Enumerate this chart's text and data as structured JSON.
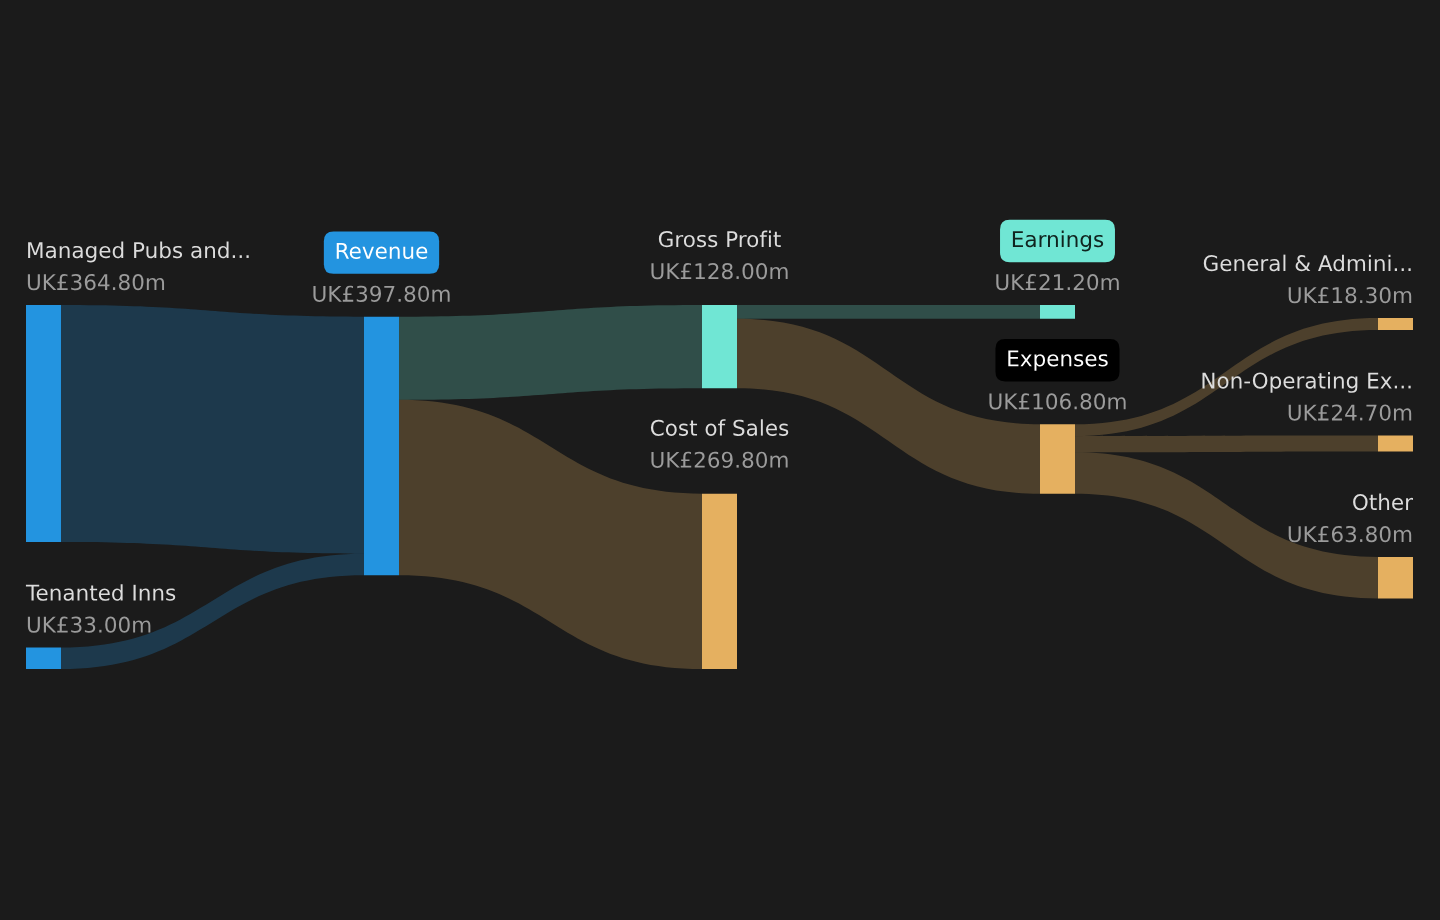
{
  "chart_data": {
    "type": "other",
    "categories": [
      "Managed Pubs and...",
      "Tenanted Inns",
      "Revenue",
      "Gross Profit",
      "Cost of Sales",
      "Earnings",
      "Expenses",
      "General & Admini...",
      "Non-Operating Ex...",
      "Other"
    ],
    "values": [
      364800000,
      33000000,
      397800000,
      128000000,
      269800000,
      21200000,
      106800000,
      18300000,
      24700000,
      63800000
    ],
    "value_labels": [
      "UK£364.80m",
      "UK£33.00m",
      "UK£397.80m",
      "UK£128.00m",
      "UK£269.80m",
      "UK£21.20m",
      "UK£106.80m",
      "UK£18.30m",
      "UK£24.70m",
      "UK£63.80m"
    ],
    "colors": [
      "#2394e0",
      "#2394e0",
      "#2394e0",
      "#70e6d4",
      "#e5b060",
      "#70e6d4",
      "#e5b060",
      "#e5b060",
      "#e5b060",
      "#e5b060"
    ]
  }
}
